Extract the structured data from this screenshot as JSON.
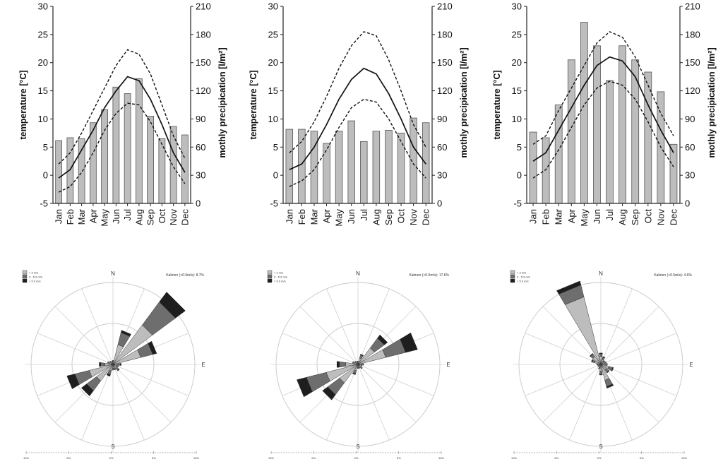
{
  "chart_data": [
    {
      "type": "bar+line",
      "ylabel": "temperature [°C]",
      "y2label": "mothly precipication [l/m²]",
      "ylim": [
        -5,
        30
      ],
      "y2lim": [
        0,
        210
      ],
      "yticks": [
        -5,
        0,
        5,
        10,
        15,
        20,
        25,
        30
      ],
      "y2ticks": [
        0,
        30,
        60,
        90,
        120,
        150,
        180,
        210
      ],
      "categories": [
        "Jan",
        "Feb",
        "Mar",
        "Apr",
        "May",
        "Jun",
        "Jul",
        "Aug",
        "Sep",
        "Oct",
        "Nov",
        "Dec"
      ],
      "precipitation": [
        67,
        70,
        69,
        86,
        100,
        124,
        117,
        133,
        93,
        69,
        82,
        73
      ],
      "temp_mean": [
        -0.5,
        1.0,
        4.5,
        8.0,
        12.0,
        15.0,
        17.5,
        16.8,
        13.5,
        9.0,
        4.0,
        0.5
      ],
      "temp_max": [
        2.0,
        4.0,
        7.5,
        11.5,
        15.5,
        19.5,
        22.3,
        21.5,
        18.0,
        12.5,
        7.0,
        3.0
      ],
      "temp_min": [
        -3.0,
        -2.0,
        0.5,
        4.0,
        8.0,
        11.0,
        12.8,
        12.5,
        9.5,
        5.5,
        1.5,
        -1.5
      ]
    },
    {
      "type": "bar+line",
      "ylabel": "temperature [°C]",
      "y2label": "mothly precipication [l/m²]",
      "ylim": [
        -5,
        30
      ],
      "y2lim": [
        0,
        210
      ],
      "yticks": [
        -5,
        0,
        5,
        10,
        15,
        20,
        25,
        30
      ],
      "y2ticks": [
        0,
        30,
        60,
        90,
        120,
        150,
        180,
        210
      ],
      "categories": [
        "Jan",
        "Feb",
        "Mar",
        "Apr",
        "May",
        "Jun",
        "Jul",
        "Aug",
        "Sep",
        "Oct",
        "Nov",
        "Dec"
      ],
      "precipitation": [
        79,
        79,
        77,
        64,
        77,
        88,
        66,
        77,
        78,
        75,
        91,
        86
      ],
      "temp_mean": [
        1.0,
        2.0,
        5.0,
        9.0,
        13.5,
        17.0,
        19.0,
        18.0,
        14.5,
        10.0,
        5.0,
        2.0
      ],
      "temp_max": [
        4.0,
        6.0,
        9.5,
        14.0,
        19.0,
        23.0,
        25.5,
        24.8,
        20.5,
        15.0,
        9.0,
        5.0
      ],
      "temp_min": [
        -2.0,
        -1.0,
        1.0,
        4.5,
        8.5,
        12.0,
        13.5,
        13.0,
        10.0,
        6.0,
        2.0,
        -0.5
      ]
    },
    {
      "type": "bar+line",
      "ylabel": "temperature [°C]",
      "y2label": "mothly precipication [l/m²]",
      "ylim": [
        -5,
        30
      ],
      "y2lim": [
        0,
        210
      ],
      "yticks": [
        -5,
        0,
        5,
        10,
        15,
        20,
        25,
        30
      ],
      "y2ticks": [
        0,
        30,
        60,
        90,
        120,
        150,
        180,
        210
      ],
      "categories": [
        "Jan",
        "Feb",
        "Mar",
        "Apr",
        "May",
        "Jun",
        "Jul",
        "Aug",
        "Sep",
        "Oct",
        "Nov",
        "Dec"
      ],
      "precipitation": [
        76,
        70,
        105,
        153,
        193,
        168,
        131,
        168,
        153,
        140,
        119,
        63
      ],
      "temp_mean": [
        2.5,
        4.0,
        8.0,
        12.0,
        16.0,
        19.5,
        21.0,
        20.3,
        17.5,
        12.5,
        8.0,
        4.0
      ],
      "temp_max": [
        5.5,
        7.0,
        11.5,
        15.5,
        19.5,
        23.5,
        25.5,
        24.5,
        21.0,
        16.0,
        11.0,
        7.0
      ],
      "temp_min": [
        -0.5,
        1.0,
        4.5,
        8.5,
        12.5,
        15.5,
        16.7,
        16.0,
        13.5,
        9.5,
        5.0,
        1.5
      ]
    },
    {
      "type": "wind-rose",
      "legend": [
        "< 3 m/s",
        "3 - 5.9 m/s",
        "> 5.9 m/s"
      ],
      "calm_label": "Kalmen (<0.5m/s): 8.7%",
      "directions": [
        "N",
        "E",
        "S"
      ],
      "scale_labels": [
        "10%",
        "5%",
        "0%",
        "5%",
        "10%"
      ],
      "bearings": [
        0,
        22.5,
        45,
        67.5,
        90,
        112.5,
        135,
        157.5,
        180,
        202.5,
        225,
        247.5,
        270,
        292.5,
        315,
        337.5
      ],
      "frequencies_pct": [
        [
          0.4,
          0.1,
          0.0
        ],
        [
          2.5,
          1.5,
          0.3
        ],
        [
          6.0,
          3.5,
          1.5
        ],
        [
          3.5,
          1.5,
          0.5
        ],
        [
          0.6,
          0.3,
          0.1
        ],
        [
          0.5,
          0.2,
          0.0
        ],
        [
          0.6,
          0.3,
          0.1
        ],
        [
          0.5,
          0.2,
          0.0
        ],
        [
          0.5,
          0.2,
          0.0
        ],
        [
          0.8,
          0.5,
          0.2
        ],
        [
          2.5,
          1.5,
          0.8
        ],
        [
          3.0,
          1.8,
          1.0
        ],
        [
          1.0,
          0.5,
          0.2
        ],
        [
          0.5,
          0.2,
          0.0
        ],
        [
          0.4,
          0.1,
          0.0
        ],
        [
          0.3,
          0.1,
          0.0
        ]
      ]
    },
    {
      "type": "wind-rose",
      "legend": [
        "< 3 m/s",
        "3 - 5.9 m/s",
        "> 5.9 m/s"
      ],
      "calm_label": "Kalmen (<0.5m/s): 17.6%",
      "directions": [
        "N",
        "E",
        "S"
      ],
      "scale_labels": [
        "10%",
        "5%",
        "0%",
        "5%",
        "10%"
      ],
      "bearings": [
        0,
        22.5,
        45,
        67.5,
        90,
        112.5,
        135,
        157.5,
        180,
        202.5,
        225,
        247.5,
        270,
        292.5,
        315,
        337.5
      ],
      "frequencies_pct": [
        [
          0.3,
          0.1,
          0.0
        ],
        [
          0.8,
          0.4,
          0.1
        ],
        [
          2.5,
          1.5,
          0.5
        ],
        [
          3.5,
          2.5,
          1.5
        ],
        [
          0.5,
          0.2,
          0.0
        ],
        [
          0.4,
          0.1,
          0.0
        ],
        [
          0.5,
          0.2,
          0.0
        ],
        [
          0.4,
          0.1,
          0.0
        ],
        [
          0.4,
          0.1,
          0.0
        ],
        [
          0.8,
          0.4,
          0.1
        ],
        [
          2.8,
          1.8,
          0.8
        ],
        [
          4.0,
          2.5,
          1.2
        ],
        [
          1.5,
          0.8,
          0.3
        ],
        [
          0.5,
          0.2,
          0.0
        ],
        [
          0.4,
          0.1,
          0.0
        ],
        [
          0.3,
          0.1,
          0.0
        ]
      ]
    },
    {
      "type": "wind-rose",
      "legend": [
        "< 3 m/s",
        "3 - 5.9 m/s",
        "> 5.9 m/s"
      ],
      "calm_label": "Kalmen (<0.5m/s): 4.6%",
      "directions": [
        "N",
        "E",
        "S"
      ],
      "scale_labels": [
        "10%",
        "5%",
        "0%",
        "5%",
        "10%"
      ],
      "bearings": [
        0,
        22.5,
        45,
        67.5,
        90,
        112.5,
        135,
        157.5,
        180,
        202.5,
        225,
        247.5,
        270,
        292.5,
        315,
        337.5
      ],
      "frequencies_pct": [
        [
          1.0,
          0.3,
          0.1
        ],
        [
          0.6,
          0.3,
          0.1
        ],
        [
          0.4,
          0.2,
          0.0
        ],
        [
          0.5,
          0.2,
          0.0
        ],
        [
          0.6,
          0.2,
          0.0
        ],
        [
          1.0,
          0.5,
          0.1
        ],
        [
          0.8,
          0.4,
          0.1
        ],
        [
          2.0,
          0.8,
          0.2
        ],
        [
          0.8,
          0.4,
          0.1
        ],
        [
          0.4,
          0.2,
          0.0
        ],
        [
          0.3,
          0.1,
          0.0
        ],
        [
          0.3,
          0.1,
          0.0
        ],
        [
          0.4,
          0.1,
          0.0
        ],
        [
          0.8,
          0.3,
          0.1
        ],
        [
          1.2,
          0.4,
          0.1
        ],
        [
          8.5,
          1.5,
          0.5
        ]
      ]
    }
  ]
}
